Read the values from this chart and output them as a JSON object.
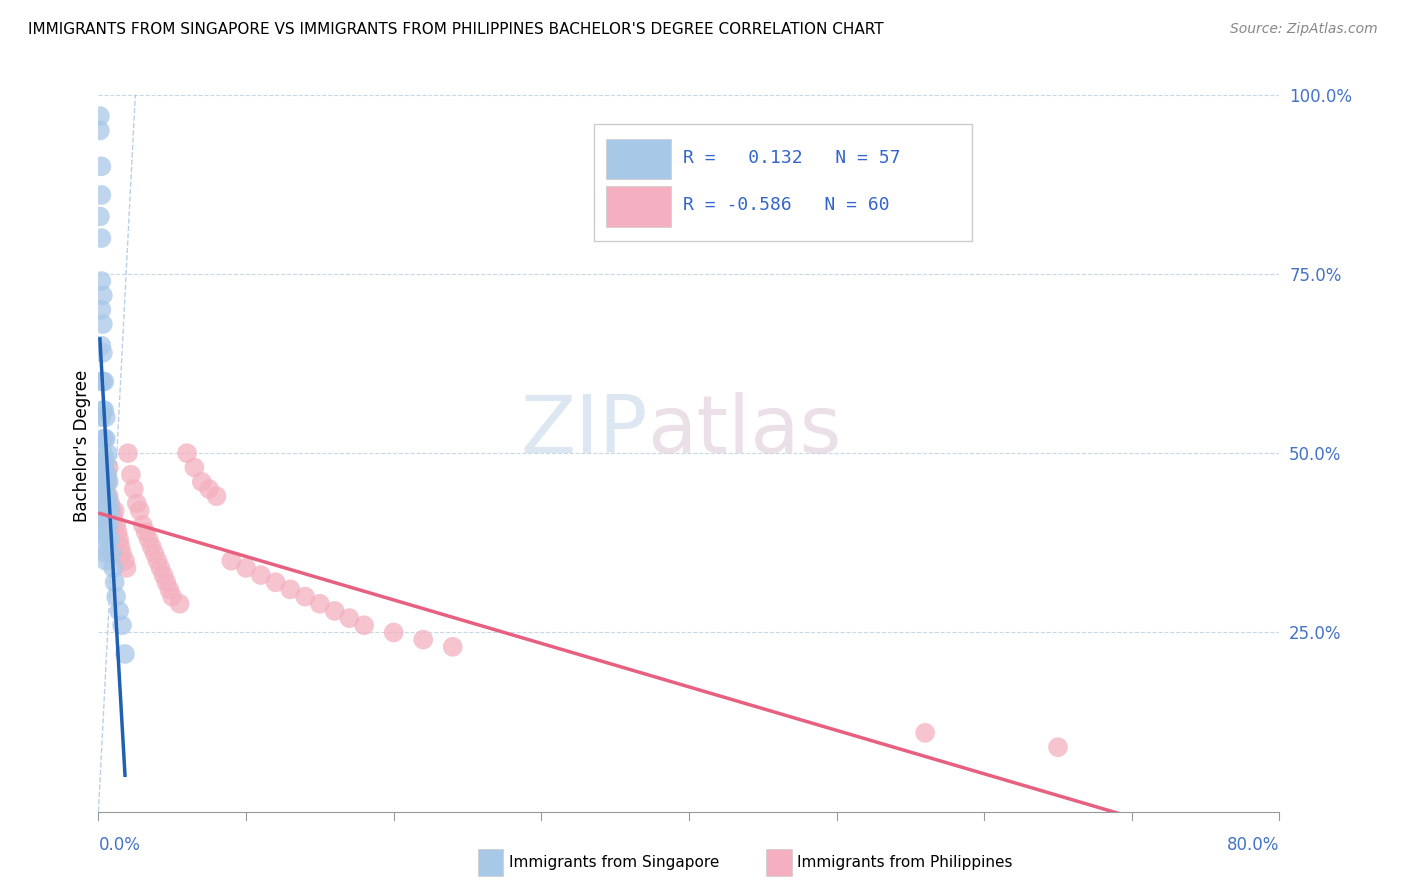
{
  "title": "IMMIGRANTS FROM SINGAPORE VS IMMIGRANTS FROM PHILIPPINES BACHELOR'S DEGREE CORRELATION CHART",
  "source": "Source: ZipAtlas.com",
  "ylabel": "Bachelor's Degree",
  "sg_R": 0.132,
  "sg_N": 57,
  "ph_R": -0.586,
  "ph_N": 60,
  "sg_color": "#a8c8e8",
  "ph_color": "#f4b0c0",
  "sg_line_color": "#2060b0",
  "ph_line_color": "#e86080",
  "ref_line_color": "#b8d0e8",
  "xlim": [
    0.0,
    0.8
  ],
  "ylim": [
    0.0,
    1.02
  ],
  "sg_x": [
    0.001,
    0.001,
    0.001,
    0.002,
    0.002,
    0.002,
    0.002,
    0.002,
    0.002,
    0.002,
    0.002,
    0.003,
    0.003,
    0.003,
    0.003,
    0.003,
    0.003,
    0.003,
    0.003,
    0.003,
    0.003,
    0.004,
    0.004,
    0.004,
    0.004,
    0.004,
    0.004,
    0.004,
    0.004,
    0.005,
    0.005,
    0.005,
    0.005,
    0.005,
    0.005,
    0.005,
    0.005,
    0.005,
    0.005,
    0.006,
    0.006,
    0.006,
    0.006,
    0.006,
    0.006,
    0.007,
    0.007,
    0.007,
    0.008,
    0.008,
    0.009,
    0.01,
    0.011,
    0.012,
    0.014,
    0.016,
    0.018
  ],
  "sg_y": [
    0.97,
    0.95,
    0.83,
    0.9,
    0.86,
    0.8,
    0.74,
    0.7,
    0.65,
    0.6,
    0.55,
    0.72,
    0.68,
    0.64,
    0.6,
    0.56,
    0.52,
    0.5,
    0.48,
    0.46,
    0.44,
    0.6,
    0.56,
    0.52,
    0.48,
    0.45,
    0.43,
    0.41,
    0.39,
    0.55,
    0.52,
    0.49,
    0.46,
    0.43,
    0.41,
    0.39,
    0.37,
    0.36,
    0.35,
    0.5,
    0.47,
    0.44,
    0.42,
    0.4,
    0.38,
    0.46,
    0.43,
    0.4,
    0.42,
    0.38,
    0.36,
    0.34,
    0.32,
    0.3,
    0.28,
    0.26,
    0.22
  ],
  "ph_x": [
    0.001,
    0.002,
    0.002,
    0.003,
    0.003,
    0.004,
    0.004,
    0.005,
    0.005,
    0.006,
    0.007,
    0.007,
    0.008,
    0.009,
    0.01,
    0.011,
    0.012,
    0.013,
    0.014,
    0.015,
    0.016,
    0.018,
    0.019,
    0.02,
    0.022,
    0.024,
    0.026,
    0.028,
    0.03,
    0.032,
    0.034,
    0.036,
    0.038,
    0.04,
    0.042,
    0.044,
    0.046,
    0.048,
    0.05,
    0.055,
    0.06,
    0.065,
    0.07,
    0.075,
    0.08,
    0.09,
    0.1,
    0.11,
    0.12,
    0.13,
    0.14,
    0.15,
    0.16,
    0.17,
    0.18,
    0.2,
    0.22,
    0.24,
    0.56,
    0.65
  ],
  "ph_y": [
    0.44,
    0.46,
    0.42,
    0.45,
    0.41,
    0.48,
    0.43,
    0.47,
    0.42,
    0.46,
    0.48,
    0.44,
    0.43,
    0.42,
    0.41,
    0.42,
    0.4,
    0.39,
    0.38,
    0.37,
    0.36,
    0.35,
    0.34,
    0.5,
    0.47,
    0.45,
    0.43,
    0.42,
    0.4,
    0.39,
    0.38,
    0.37,
    0.36,
    0.35,
    0.34,
    0.33,
    0.32,
    0.31,
    0.3,
    0.29,
    0.5,
    0.48,
    0.46,
    0.45,
    0.44,
    0.35,
    0.34,
    0.33,
    0.32,
    0.31,
    0.3,
    0.29,
    0.28,
    0.27,
    0.26,
    0.25,
    0.24,
    0.23,
    0.11,
    0.09
  ],
  "yticks": [
    0.0,
    0.25,
    0.5,
    0.75,
    1.0
  ],
  "ytick_labels": [
    "",
    "25.0%",
    "50.0%",
    "75.0%",
    "100.0%"
  ]
}
